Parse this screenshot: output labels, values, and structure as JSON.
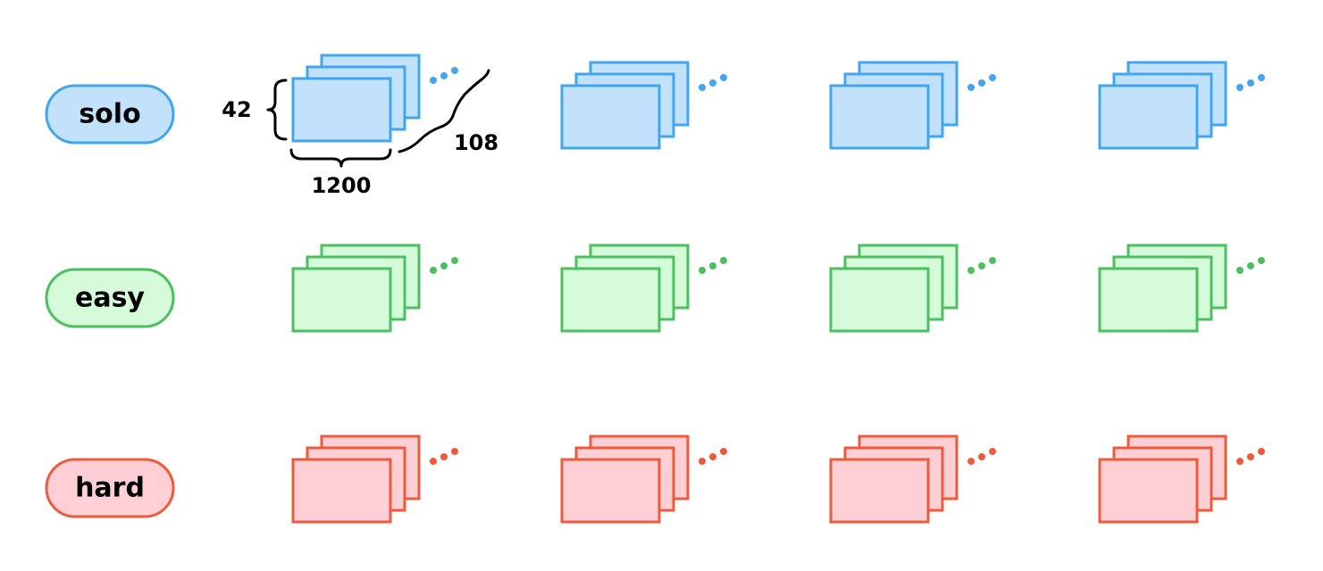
{
  "rows": [
    {
      "label": "solo",
      "stroke": "#42a5f0",
      "fill": "#c2e2fb"
    },
    {
      "label": "easy",
      "stroke": "#4cbf5f",
      "fill": "#d6fbdb"
    },
    {
      "label": "hard",
      "stroke": "#ee5a3c",
      "fill": "#fecfd4"
    }
  ],
  "stacks_per_row": 4,
  "layers_per_stack": 3,
  "continuation_marker": "...",
  "dimensions": {
    "height": "42",
    "width": "1200",
    "depth": "108"
  }
}
